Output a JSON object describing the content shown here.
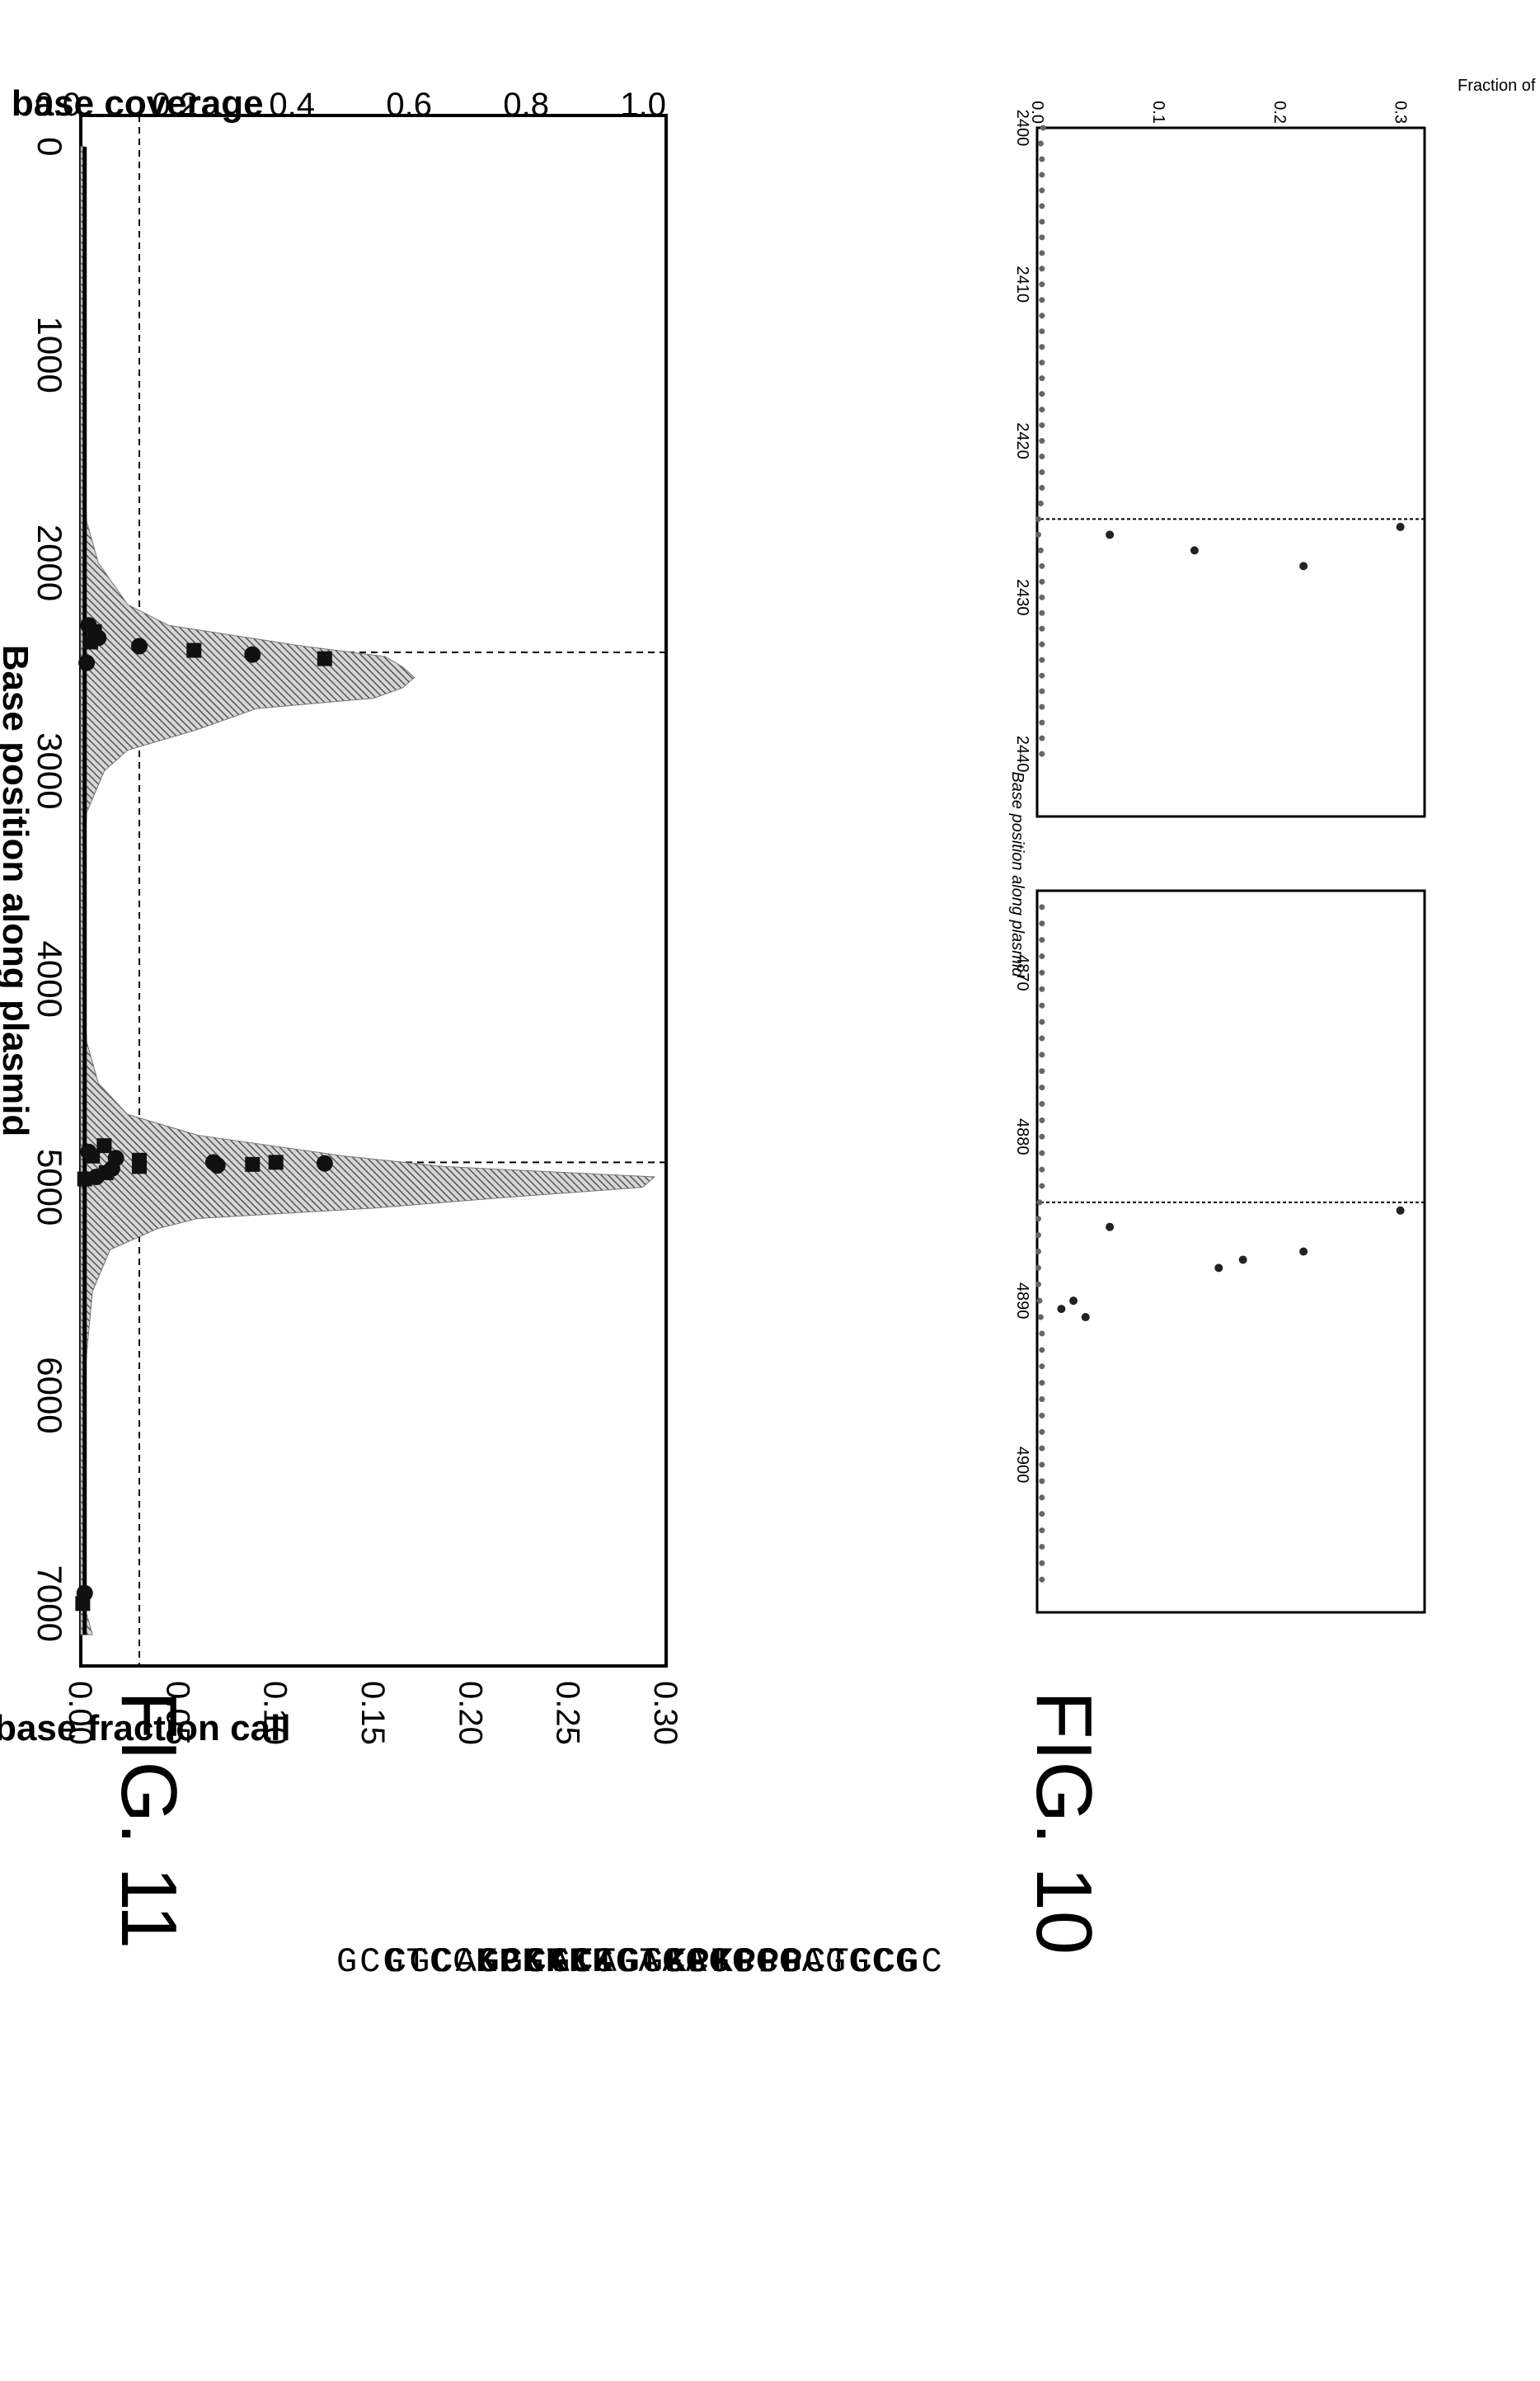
{
  "chart_data": [
    {
      "type": "scatter",
      "figure_label": "FIG. 10",
      "ylabel": "Fraction of unexpected base",
      "xlabel": "Base position along plasmid",
      "ylim": [
        0.0,
        0.32
      ],
      "yticks": [
        "0.0",
        "0.1",
        "0.2",
        "0.3"
      ],
      "panels": [
        {
          "xlim": [
            2400,
            2444
          ],
          "xticks": [
            "2400",
            "2410",
            "2420",
            "2430",
            "2440"
          ],
          "vline": 2425,
          "series": [
            {
              "x": [
                2400,
                2401,
                2402,
                2403,
                2404,
                2405,
                2406,
                2407,
                2408,
                2409,
                2410,
                2411,
                2412,
                2413,
                2414,
                2415,
                2416,
                2417,
                2418,
                2419,
                2420,
                2421,
                2422,
                2423,
                2424,
                2425,
                2426,
                2427,
                2428,
                2429,
                2430,
                2431,
                2432,
                2433,
                2434,
                2435,
                2436,
                2437,
                2438,
                2439,
                2440
              ],
              "y": [
                0.005,
                0.003,
                0.004,
                0.004,
                0.004,
                0.004,
                0.004,
                0.004,
                0.004,
                0.004,
                0.004,
                0.004,
                0.004,
                0.004,
                0.004,
                0.004,
                0.004,
                0.004,
                0.004,
                0.004,
                0.004,
                0.004,
                0.004,
                0.004,
                0.003,
                0.001,
                0.001,
                0.003,
                0.004,
                0.004,
                0.004,
                0.004,
                0.004,
                0.004,
                0.004,
                0.004,
                0.004,
                0.004,
                0.004,
                0.004,
                0.004
              ]
            },
            {
              "x": [
                2425.5,
                2426,
                2427,
                2428
              ],
              "y": [
                0.3,
                0.06,
                0.13,
                0.22
              ]
            }
          ]
        },
        {
          "xlim": [
            4865,
            4909
          ],
          "xticks": [
            "4870",
            "4880",
            "4890",
            "4900"
          ],
          "vline": 4884,
          "series": [
            {
              "x": [
                4866,
                4867,
                4868,
                4869,
                4870,
                4871,
                4872,
                4873,
                4874,
                4875,
                4876,
                4877,
                4878,
                4879,
                4880,
                4881,
                4882,
                4883,
                4884,
                4885,
                4886,
                4887,
                4888,
                4889,
                4890,
                4891,
                4892,
                4893,
                4894,
                4895,
                4896,
                4897,
                4898,
                4899,
                4900,
                4901,
                4902,
                4903,
                4904,
                4905,
                4906,
                4907
              ],
              "y": [
                0.004,
                0.004,
                0.004,
                0.004,
                0.004,
                0.004,
                0.004,
                0.004,
                0.004,
                0.004,
                0.004,
                0.004,
                0.004,
                0.004,
                0.004,
                0.004,
                0.004,
                0.004,
                0.002,
                0.001,
                0.001,
                0.001,
                0.001,
                0.001,
                0.002,
                0.003,
                0.004,
                0.004,
                0.004,
                0.004,
                0.004,
                0.004,
                0.004,
                0.004,
                0.004,
                0.004,
                0.004,
                0.004,
                0.004,
                0.004,
                0.004,
                0.004
              ]
            },
            {
              "x": [
                4884.5,
                4885.5,
                4887,
                4887.5,
                4888,
                4890,
                4890.5,
                4891
              ],
              "y": [
                0.3,
                0.06,
                0.22,
                0.17,
                0.15,
                0.03,
                0.02,
                0.04
              ]
            }
          ]
        }
      ]
    },
    {
      "type": "line",
      "figure_label": "FIG. 11",
      "title": "",
      "xlabel": "Base position along plasmid",
      "ylabel": "Normalized base coverage",
      "y2label": "Unexpected base fraction call",
      "xlim": [
        -150,
        7300
      ],
      "ylim": [
        0.0,
        1.0
      ],
      "y2lim": [
        0.0,
        0.3
      ],
      "xticks": [
        "0",
        "1000",
        "2000",
        "3000",
        "4000",
        "5000",
        "6000",
        "7000"
      ],
      "yticks": [
        "0.0",
        "0.2",
        "0.4",
        "0.6",
        "0.8",
        "1.0"
      ],
      "y2ticks": [
        "0.00",
        "0.05",
        "0.10",
        "0.15",
        "0.20",
        "0.25",
        "0.30"
      ],
      "threshold": 0.03,
      "vlines": [
        2430,
        4880
      ],
      "coverage": {
        "x": [
          0,
          500,
          1000,
          1500,
          1800,
          2000,
          2200,
          2300,
          2400,
          2450,
          2500,
          2550,
          2600,
          2650,
          2700,
          2800,
          2900,
          3000,
          3200,
          3500,
          4000,
          4300,
          4500,
          4650,
          4750,
          4850,
          4900,
          4950,
          5000,
          5050,
          5100,
          5150,
          5200,
          5300,
          5500,
          5800,
          6000,
          6500,
          7000,
          7150
        ],
        "y": [
          0.005,
          0.005,
          0.005,
          0.005,
          0.01,
          0.03,
          0.08,
          0.15,
          0.38,
          0.52,
          0.55,
          0.57,
          0.55,
          0.5,
          0.3,
          0.2,
          0.08,
          0.04,
          0.01,
          0.005,
          0.005,
          0.01,
          0.03,
          0.08,
          0.2,
          0.45,
          0.62,
          0.98,
          0.96,
          0.72,
          0.5,
          0.2,
          0.13,
          0.05,
          0.02,
          0.01,
          0.005,
          0.005,
          0.005,
          0.02
        ]
      },
      "unexpected_calls": {
        "x": [
          2300,
          2330,
          2360,
          2380,
          2400,
          2420,
          2440,
          2460,
          2480,
          4800,
          4830,
          4850,
          4860,
          4870,
          4880,
          4880,
          4885,
          4890,
          4895,
          4900,
          4910,
          4930,
          4950,
          4960,
          6950,
          7000
        ],
        "y": [
          0.004,
          0.007,
          0.009,
          0.005,
          0.03,
          0.058,
          0.088,
          0.125,
          0.003,
          0.012,
          0.004,
          0.006,
          0.018,
          0.03,
          0.068,
          0.1,
          0.125,
          0.088,
          0.07,
          0.03,
          0.016,
          0.013,
          0.008,
          0.002,
          0.002,
          0.001
        ]
      }
    }
  ],
  "sequences": [
    {
      "row": "CGCAGG|KPKPPP|CTCCGC"
    },
    {
      "row": "GCGTCCGTAAGGGGAGGCG"
    },
    {
      "row": "CGCAGGCATTCCCCTCCGC"
    },
    {
      "row": "GCGTCC|KPKKKK|GAGGCG"
    }
  ]
}
